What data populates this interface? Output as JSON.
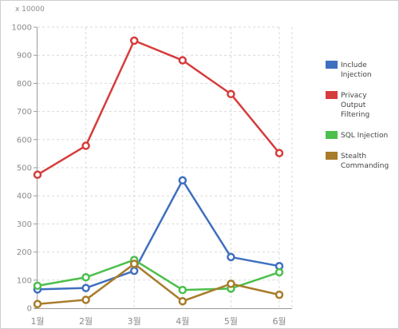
{
  "chart_data": {
    "type": "line",
    "unit_label": "x 10000",
    "categories": [
      "1월",
      "2월",
      "3월",
      "4월",
      "5월",
      "6월"
    ],
    "ylim": [
      0,
      1000
    ],
    "yticks": [
      0,
      100,
      200,
      300,
      400,
      500,
      600,
      700,
      800,
      900,
      1000
    ],
    "grid": true,
    "legend_position": "right",
    "series": [
      {
        "name": "Include Injection",
        "legend_lines": [
          "Include",
          "Injection"
        ],
        "color": "#3f6fbf",
        "values": [
          67,
          72,
          133,
          455,
          182,
          150
        ]
      },
      {
        "name": "Privacy Output Filtering",
        "legend_lines": [
          "Privacy",
          "Output",
          "Filtering"
        ],
        "color": "#d63c3c",
        "values": [
          475,
          578,
          952,
          882,
          762,
          552
        ]
      },
      {
        "name": "SQL Injection",
        "legend_lines": [
          "SQL Injection"
        ],
        "color": "#4cbf4c",
        "values": [
          80,
          110,
          172,
          65,
          70,
          128
        ]
      },
      {
        "name": "Stealth Commanding",
        "legend_lines": [
          "Stealth",
          "Commanding"
        ],
        "color": "#a87c2a",
        "values": [
          15,
          30,
          158,
          25,
          87,
          48
        ]
      }
    ]
  }
}
